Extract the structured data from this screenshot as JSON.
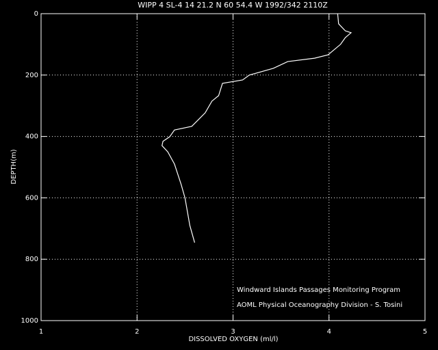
{
  "chart_data": {
    "type": "profile",
    "title": "WIPP 4 SL-4  14 21.2 N  60 54.4 W  1992/342 2110Z",
    "x_label": "DISSOLVED OXYGEN (ml/l)",
    "y_label": "DEPTH(m)",
    "annotations": [
      "Windward Islands Passages Monitoring Program",
      "AOML Physical Oceanography Division - S. Tosini"
    ],
    "xlim": [
      1,
      5
    ],
    "xticks": [
      1,
      2,
      3,
      4,
      5
    ],
    "ylim": [
      1000,
      0
    ],
    "yticks": [
      0,
      200,
      400,
      600,
      800,
      1000
    ],
    "grid": true,
    "color": "#ffffff",
    "depth": [
      0,
      33,
      56,
      62,
      78,
      100,
      134,
      145,
      156,
      178,
      200,
      216,
      227,
      267,
      285,
      323,
      345,
      367,
      379,
      401,
      416,
      430,
      450,
      490,
      557,
      601,
      690,
      746
    ],
    "values": [
      4.09,
      4.1,
      4.17,
      4.23,
      4.17,
      4.12,
      3.99,
      3.85,
      3.57,
      3.42,
      3.17,
      3.1,
      2.89,
      2.85,
      2.78,
      2.71,
      2.64,
      2.57,
      2.39,
      2.34,
      2.27,
      2.26,
      2.32,
      2.39,
      2.46,
      2.5,
      2.55,
      2.6
    ]
  }
}
